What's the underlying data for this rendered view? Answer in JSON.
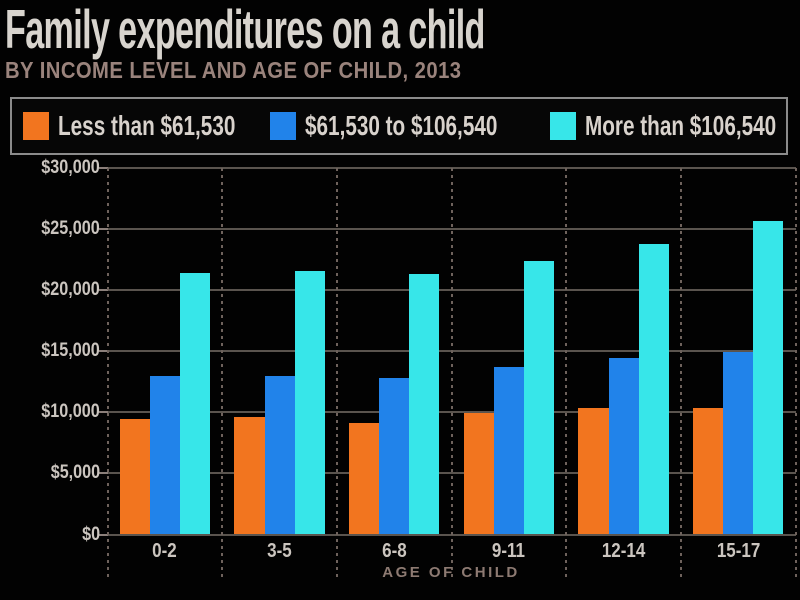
{
  "header": {
    "title": "Family expenditures on a child",
    "subtitle": "BY INCOME LEVEL AND AGE OF CHILD, 2013"
  },
  "chart_data": {
    "type": "bar",
    "title": "Family expenditures on a child",
    "subtitle": "BY INCOME LEVEL AND AGE OF CHILD, 2013",
    "categories": [
      "0-2",
      "3-5",
      "6-8",
      "9-11",
      "12-14",
      "15-17"
    ],
    "series": [
      {
        "name": "Less than $61,530",
        "color": "#F2751F",
        "values": [
          9480,
          9610,
          9130,
          9940,
          10340,
          10350
        ]
      },
      {
        "name": "$61,530 to $106,540",
        "color": "#2183EA",
        "values": [
          12940,
          12970,
          12800,
          13680,
          14420,
          14970
        ]
      },
      {
        "name": "More than $106,540",
        "color": "#37E6E9",
        "values": [
          21430,
          21530,
          21330,
          22370,
          23750,
          25700
        ]
      }
    ],
    "xlabel": "AGE OF CHILD",
    "ylabel": "",
    "ylim": [
      0,
      30000
    ],
    "y_ticks": [
      0,
      5000,
      10000,
      15000,
      20000,
      25000,
      30000
    ],
    "y_tick_labels": [
      "$0",
      "$5,000",
      "$10,000",
      "$15,000",
      "$20,000",
      "$25,000",
      "$30,000"
    ],
    "grid": "horizontal solid gridlines, dashed vertical group separators",
    "legend_position": "top"
  },
  "colors": {
    "background": "#020202",
    "title_text": "#D8D4CE",
    "subtitle_text": "#9A837C",
    "legend_border": "#8B8B8B",
    "legend_background": "#060606",
    "legend_text": "#D8D2CC",
    "tick_label_text": "#CBC5BF",
    "axis_title_text": "#8D7A72",
    "gridline": "#5A544E",
    "separator": "#6E625C",
    "tick_mark": "#8B7F7A"
  }
}
